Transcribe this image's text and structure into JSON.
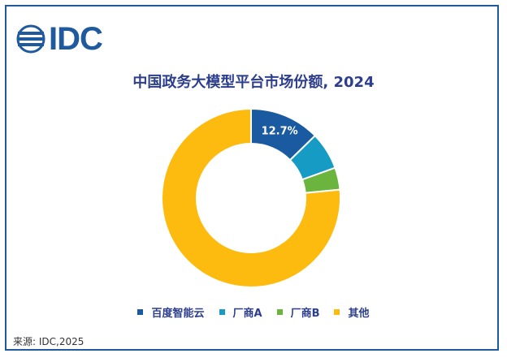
{
  "logo": {
    "text": "IDC"
  },
  "chart_data": {
    "type": "pie",
    "title": "中国政务大模型平台市场份额, 2024",
    "slices": [
      {
        "label": "百度智能云",
        "value": 12.7,
        "color": "#1a5aa0",
        "data_label": "12.7%"
      },
      {
        "label": "厂商A",
        "value": 6.8,
        "color": "#169cc4",
        "data_label": ""
      },
      {
        "label": "厂商B",
        "value": 4.0,
        "color": "#6bb43e",
        "data_label": ""
      },
      {
        "label": "其他",
        "value": 76.5,
        "color": "#fdbb0f",
        "data_label": ""
      }
    ],
    "legend_position": "bottom"
  },
  "source": "来源: IDC,2025"
}
